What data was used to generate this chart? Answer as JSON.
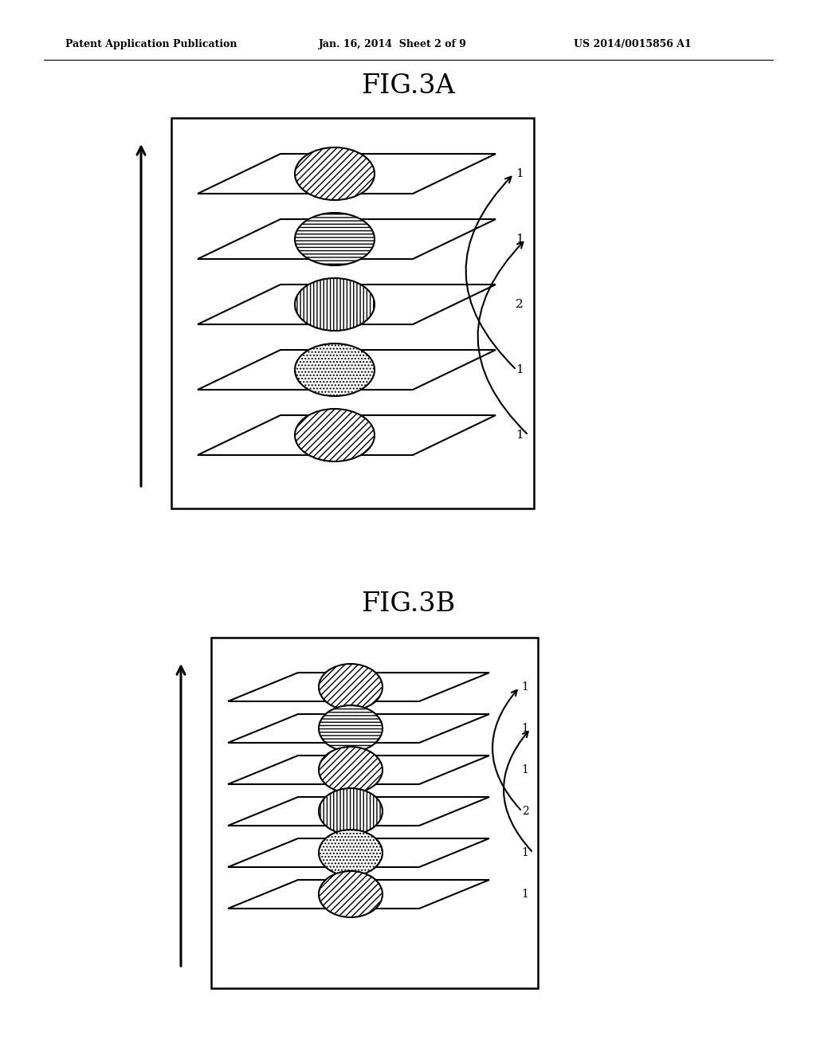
{
  "header_left": "Patent Application Publication",
  "header_center": "Jan. 16, 2014  Sheet 2 of 9",
  "header_right": "US 2014/0015856 A1",
  "fig3a_title": "FIG.3A",
  "fig3b_title": "FIG.3B",
  "background_color": "#ffffff",
  "fig3a_labels": [
    "1",
    "1",
    "2",
    "1",
    "1"
  ],
  "fig3b_labels": [
    "1",
    "1",
    "1",
    "2",
    "1",
    "1"
  ],
  "hatch_patterns_a": [
    "////",
    "----",
    "||||",
    ".....",
    "////"
  ],
  "hatch_patterns_b": [
    "////",
    "----",
    "||||",
    ".....",
    "////"
  ]
}
